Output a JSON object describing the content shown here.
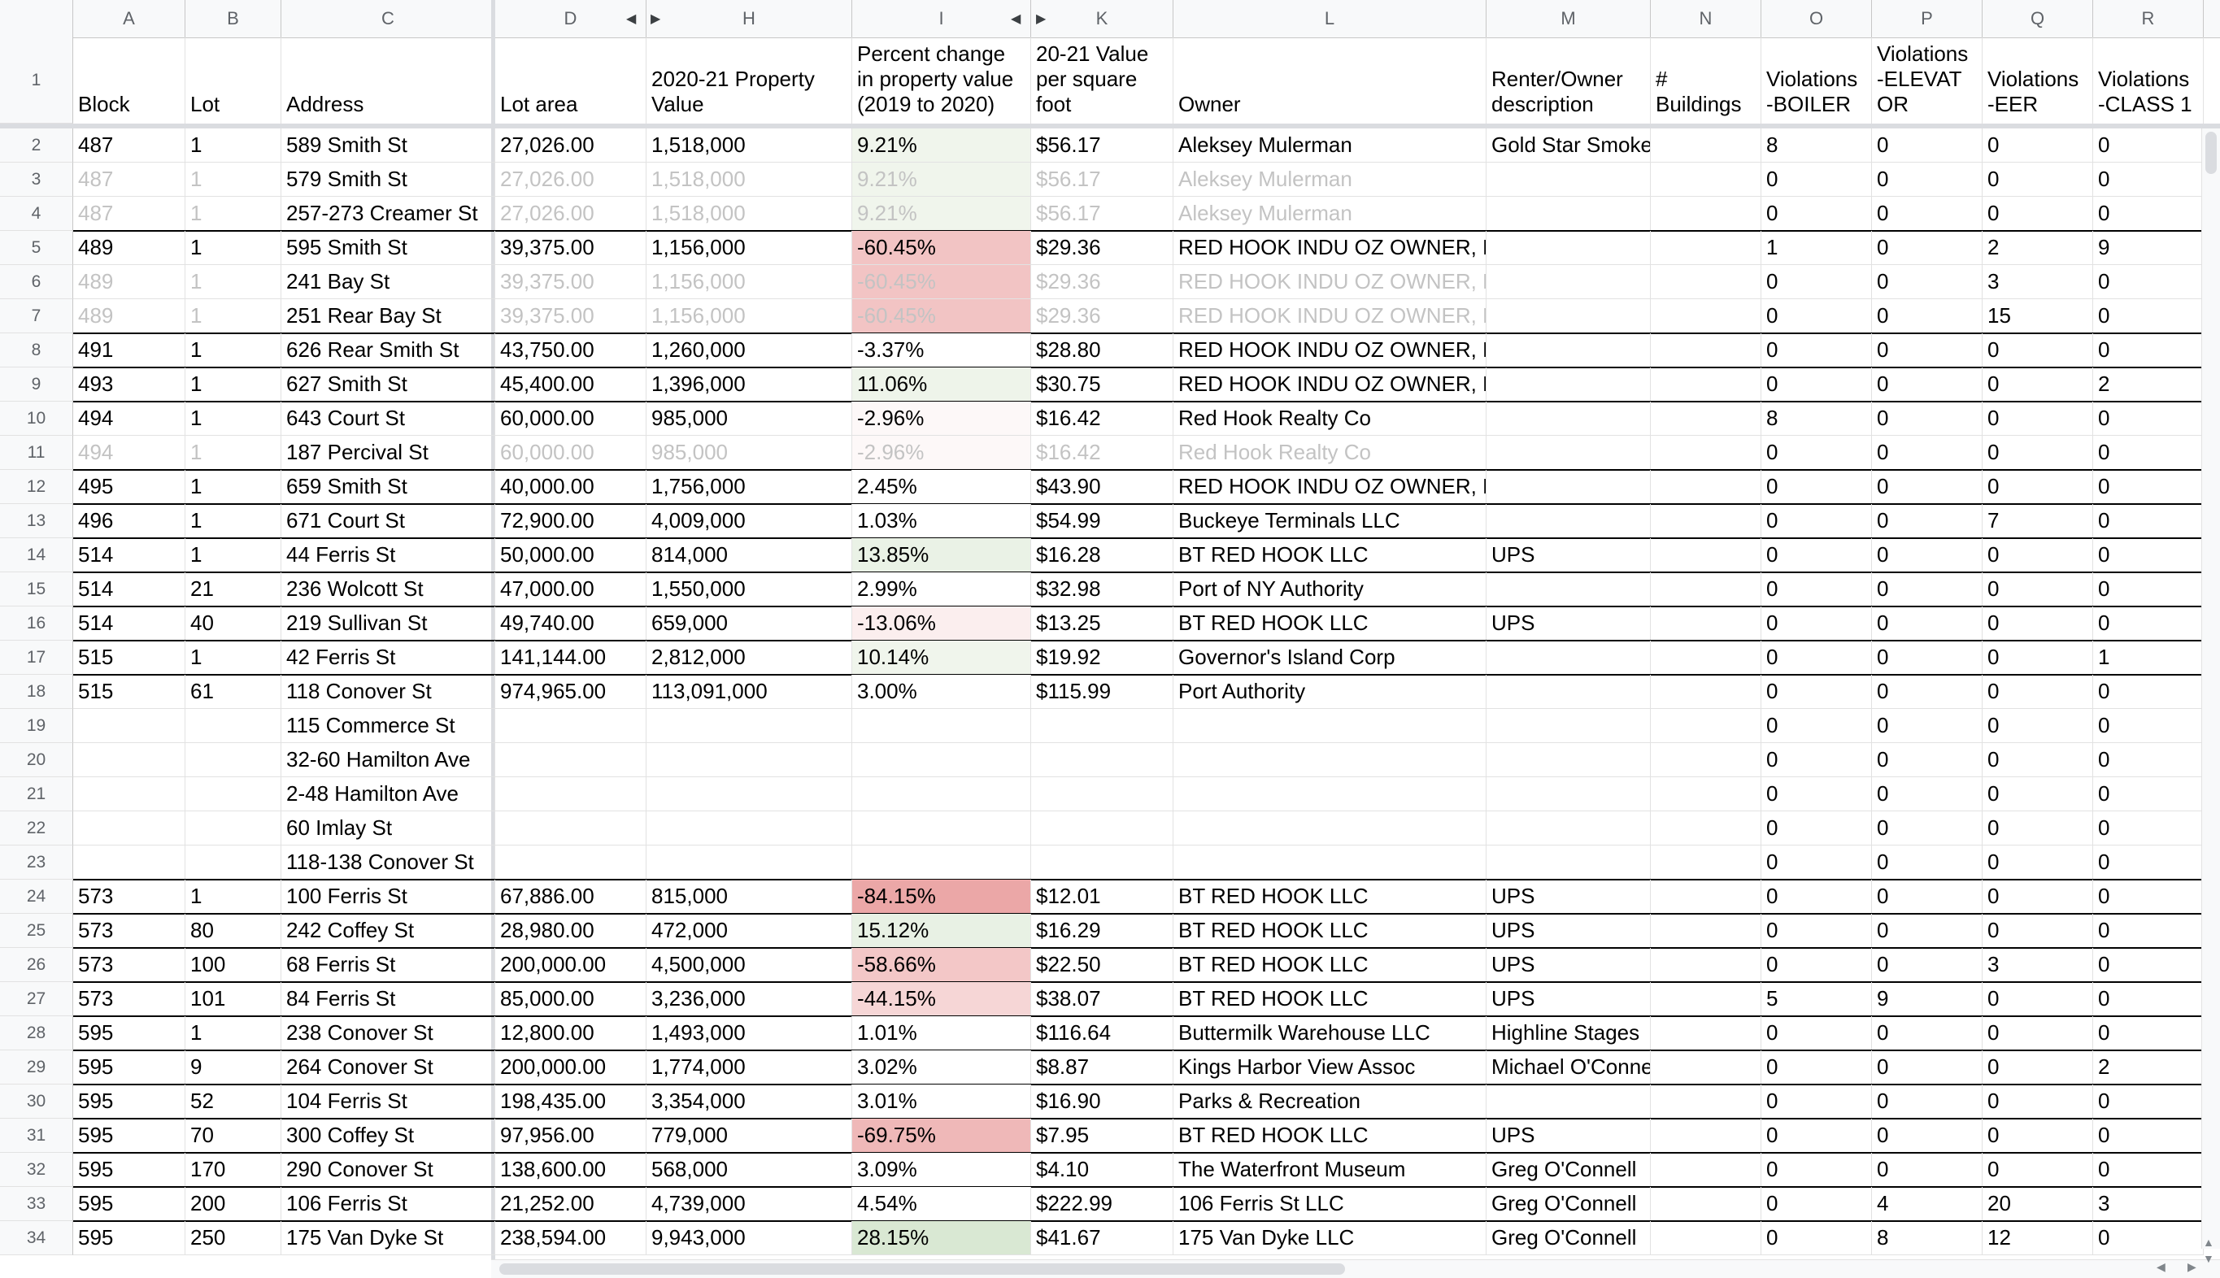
{
  "columns": [
    {
      "letter": "A"
    },
    {
      "letter": "B"
    },
    {
      "letter": "C"
    },
    {
      "letter": "D"
    },
    {
      "letter": "H"
    },
    {
      "letter": "I"
    },
    {
      "letter": "K"
    },
    {
      "letter": "L"
    },
    {
      "letter": "M"
    },
    {
      "letter": "N"
    },
    {
      "letter": "O"
    },
    {
      "letter": "P"
    },
    {
      "letter": "Q"
    },
    {
      "letter": "R"
    }
  ],
  "header_row": [
    "Block",
    "Lot",
    "Address",
    "Lot area",
    "2020-21 Property\nValue",
    "Percent change\nin property value\n(2019 to 2020)",
    "20-21 Value\nper square\nfoot",
    "Owner",
    "Renter/Owner\ndescription",
    "#\nBuildings",
    "Violations\n-BOILER",
    "Violations\n-ELEVAT\nOR",
    "Violations\n-EER",
    "Violations\n-CLASS 1"
  ],
  "rows": [
    {
      "n": "2",
      "cells": [
        "487",
        "1",
        "589 Smith St",
        "27,026.00",
        "1,518,000",
        "9.21%",
        "$56.17",
        "Aleksey Mulerman",
        "Gold Star Smoked Fish",
        "",
        "8",
        "0",
        "0",
        "0"
      ],
      "gray": false,
      "pct_color": "#f0f5ec",
      "line_above": false
    },
    {
      "n": "3",
      "cells": [
        "487",
        "1",
        "579 Smith St",
        "27,026.00",
        "1,518,000",
        "9.21%",
        "$56.17",
        "Aleksey Mulerman",
        "",
        "",
        "0",
        "0",
        "0",
        "0"
      ],
      "gray": true,
      "pct_color": "#f0f5ec",
      "line_above": false
    },
    {
      "n": "4",
      "cells": [
        "487",
        "1",
        "257-273 Creamer St",
        "27,026.00",
        "1,518,000",
        "9.21%",
        "$56.17",
        "Aleksey Mulerman",
        "",
        "",
        "0",
        "0",
        "0",
        "0"
      ],
      "gray": true,
      "pct_color": "#f0f5ec",
      "line_above": false
    },
    {
      "n": "5",
      "cells": [
        "489",
        "1",
        "595 Smith St",
        "39,375.00",
        "1,156,000",
        "-60.45%",
        "$29.36",
        "RED HOOK INDU OZ OWNER, LLC",
        "",
        "",
        "1",
        "0",
        "2",
        "9"
      ],
      "gray": false,
      "pct_color": "#f2c4c4",
      "line_above": true
    },
    {
      "n": "6",
      "cells": [
        "489",
        "1",
        "241 Bay St",
        "39,375.00",
        "1,156,000",
        "-60.45%",
        "$29.36",
        "RED HOOK INDU OZ OWNER, LLC",
        "",
        "",
        "0",
        "0",
        "3",
        "0"
      ],
      "gray": true,
      "pct_color": "#f2c4c4",
      "line_above": false
    },
    {
      "n": "7",
      "cells": [
        "489",
        "1",
        "251 Rear Bay St",
        "39,375.00",
        "1,156,000",
        "-60.45%",
        "$29.36",
        "RED HOOK INDU OZ OWNER, LLC",
        "",
        "",
        "0",
        "0",
        "15",
        "0"
      ],
      "gray": true,
      "pct_color": "#f2c4c4",
      "line_above": false
    },
    {
      "n": "8",
      "cells": [
        "491",
        "1",
        "626 Rear Smith St",
        "43,750.00",
        "1,260,000",
        "-3.37%",
        "$28.80",
        "RED HOOK INDU OZ OWNER, LLC",
        "",
        "",
        "0",
        "0",
        "0",
        "0"
      ],
      "gray": false,
      "pct_color": "#ffffff",
      "line_above": true
    },
    {
      "n": "9",
      "cells": [
        "493",
        "1",
        "627 Smith St",
        "45,400.00",
        "1,396,000",
        "11.06%",
        "$30.75",
        "RED HOOK INDU OZ OWNER, LLC",
        "",
        "",
        "0",
        "0",
        "0",
        "2"
      ],
      "gray": false,
      "pct_color": "#eef4ea",
      "line_above": true
    },
    {
      "n": "10",
      "cells": [
        "494",
        "1",
        "643 Court St",
        "60,000.00",
        "985,000",
        "-2.96%",
        "$16.42",
        "Red Hook Realty Co",
        "",
        "",
        "8",
        "0",
        "0",
        "0"
      ],
      "gray": false,
      "pct_color": "#fdf8f8",
      "line_above": true
    },
    {
      "n": "11",
      "cells": [
        "494",
        "1",
        "187 Percival St",
        "60,000.00",
        "985,000",
        "-2.96%",
        "$16.42",
        "Red Hook Realty Co",
        "",
        "",
        "0",
        "0",
        "0",
        "0"
      ],
      "gray": true,
      "pct_color": "#fdf8f8",
      "line_above": false
    },
    {
      "n": "12",
      "cells": [
        "495",
        "1",
        "659 Smith St",
        "40,000.00",
        "1,756,000",
        "2.45%",
        "$43.90",
        "RED HOOK INDU OZ OWNER, LLC",
        "",
        "",
        "0",
        "0",
        "0",
        "0"
      ],
      "gray": false,
      "pct_color": "#ffffff",
      "line_above": true
    },
    {
      "n": "13",
      "cells": [
        "496",
        "1",
        "671 Court St",
        "72,900.00",
        "4,009,000",
        "1.03%",
        "$54.99",
        "Buckeye Terminals LLC",
        "",
        "",
        "0",
        "0",
        "7",
        "0"
      ],
      "gray": false,
      "pct_color": "#ffffff",
      "line_above": true
    },
    {
      "n": "14",
      "cells": [
        "514",
        "1",
        "44 Ferris St",
        "50,000.00",
        "814,000",
        "13.85%",
        "$16.28",
        "BT RED HOOK LLC",
        "UPS",
        "",
        "0",
        "0",
        "0",
        "0"
      ],
      "gray": false,
      "pct_color": "#eaf2e6",
      "line_above": true
    },
    {
      "n": "15",
      "cells": [
        "514",
        "21",
        "236 Wolcott St",
        "47,000.00",
        "1,550,000",
        "2.99%",
        "$32.98",
        "Port of NY Authority",
        "",
        "",
        "0",
        "0",
        "0",
        "0"
      ],
      "gray": false,
      "pct_color": "#ffffff",
      "line_above": true
    },
    {
      "n": "16",
      "cells": [
        "514",
        "40",
        "219 Sullivan St",
        "49,740.00",
        "659,000",
        "-13.06%",
        "$13.25",
        "BT RED HOOK LLC",
        "UPS",
        "",
        "0",
        "0",
        "0",
        "0"
      ],
      "gray": false,
      "pct_color": "#fbeeee",
      "line_above": true
    },
    {
      "n": "17",
      "cells": [
        "515",
        "1",
        "42 Ferris St",
        "141,144.00",
        "2,812,000",
        "10.14%",
        "$19.92",
        "Governor's Island Corp",
        "",
        "",
        "0",
        "0",
        "0",
        "1"
      ],
      "gray": false,
      "pct_color": "#f0f5ec",
      "line_above": true
    },
    {
      "n": "18",
      "cells": [
        "515",
        "61",
        "118 Conover St",
        "974,965.00",
        "113,091,000",
        "3.00%",
        "$115.99",
        "Port Authority",
        "",
        "",
        "0",
        "0",
        "0",
        "0"
      ],
      "gray": false,
      "pct_color": "#ffffff",
      "line_above": true
    },
    {
      "n": "19",
      "cells": [
        "",
        "",
        "115 Commerce St",
        "",
        "",
        "",
        "",
        "",
        "",
        "",
        "0",
        "0",
        "0",
        "0"
      ],
      "gray": false,
      "pct_color": "#ffffff",
      "line_above": false
    },
    {
      "n": "20",
      "cells": [
        "",
        "",
        "32-60 Hamilton Ave",
        "",
        "",
        "",
        "",
        "",
        "",
        "",
        "0",
        "0",
        "0",
        "0"
      ],
      "gray": false,
      "pct_color": "#ffffff",
      "line_above": false
    },
    {
      "n": "21",
      "cells": [
        "",
        "",
        "2-48 Hamilton Ave",
        "",
        "",
        "",
        "",
        "",
        "",
        "",
        "0",
        "0",
        "0",
        "0"
      ],
      "gray": false,
      "pct_color": "#ffffff",
      "line_above": false
    },
    {
      "n": "22",
      "cells": [
        "",
        "",
        "60 Imlay St",
        "",
        "",
        "",
        "",
        "",
        "",
        "",
        "0",
        "0",
        "0",
        "0"
      ],
      "gray": false,
      "pct_color": "#ffffff",
      "line_above": false
    },
    {
      "n": "23",
      "cells": [
        "",
        "",
        "118-138 Conover St",
        "",
        "",
        "",
        "",
        "",
        "",
        "",
        "0",
        "0",
        "0",
        "0"
      ],
      "gray": false,
      "pct_color": "#ffffff",
      "line_above": false
    },
    {
      "n": "24",
      "cells": [
        "573",
        "1",
        "100 Ferris St",
        "67,886.00",
        "815,000",
        "-84.15%",
        "$12.01",
        "BT RED HOOK LLC",
        "UPS",
        "",
        "0",
        "0",
        "0",
        "0"
      ],
      "gray": false,
      "pct_color": "#eba7a7",
      "line_above": true
    },
    {
      "n": "25",
      "cells": [
        "573",
        "80",
        "242 Coffey St",
        "28,980.00",
        "472,000",
        "15.12%",
        "$16.29",
        "BT RED HOOK LLC",
        "UPS",
        "",
        "0",
        "0",
        "0",
        "0"
      ],
      "gray": false,
      "pct_color": "#e8f1e4",
      "line_above": true
    },
    {
      "n": "26",
      "cells": [
        "573",
        "100",
        "68 Ferris St",
        "200,000.00",
        "4,500,000",
        "-58.66%",
        "$22.50",
        "BT RED HOOK LLC",
        "UPS",
        "",
        "0",
        "0",
        "3",
        "0"
      ],
      "gray": false,
      "pct_color": "#f3c7c7",
      "line_above": true
    },
    {
      "n": "27",
      "cells": [
        "573",
        "101",
        "84 Ferris St",
        "85,000.00",
        "3,236,000",
        "-44.15%",
        "$38.07",
        "BT RED HOOK LLC",
        "UPS",
        "",
        "5",
        "9",
        "0",
        "0"
      ],
      "gray": false,
      "pct_color": "#f6d6d6",
      "line_above": true
    },
    {
      "n": "28",
      "cells": [
        "595",
        "1",
        "238 Conover St",
        "12,800.00",
        "1,493,000",
        "1.01%",
        "$116.64",
        "Buttermilk Warehouse LLC",
        "Highline Stages",
        "",
        "0",
        "0",
        "0",
        "0"
      ],
      "gray": false,
      "pct_color": "#ffffff",
      "line_above": true
    },
    {
      "n": "29",
      "cells": [
        "595",
        "9",
        "264 Conover St",
        "200,000.00",
        "1,774,000",
        "3.02%",
        "$8.87",
        "Kings Harbor View Assoc",
        "Michael O'Connell",
        "",
        "0",
        "0",
        "0",
        "2"
      ],
      "gray": false,
      "pct_color": "#ffffff",
      "line_above": true
    },
    {
      "n": "30",
      "cells": [
        "595",
        "52",
        "104 Ferris St",
        "198,435.00",
        "3,354,000",
        "3.01%",
        "$16.90",
        "Parks & Recreation",
        "",
        "",
        "0",
        "0",
        "0",
        "0"
      ],
      "gray": false,
      "pct_color": "#ffffff",
      "line_above": true
    },
    {
      "n": "31",
      "cells": [
        "595",
        "70",
        "300 Coffey St",
        "97,956.00",
        "779,000",
        "-69.75%",
        "$7.95",
        "BT RED HOOK LLC",
        "UPS",
        "",
        "0",
        "0",
        "0",
        "0"
      ],
      "gray": false,
      "pct_color": "#efb8b8",
      "line_above": true
    },
    {
      "n": "32",
      "cells": [
        "595",
        "170",
        "290 Conover St",
        "138,600.00",
        "568,000",
        "3.09%",
        "$4.10",
        "The Waterfront Museum",
        "Greg O'Connell",
        "",
        "0",
        "0",
        "0",
        "0"
      ],
      "gray": false,
      "pct_color": "#ffffff",
      "line_above": true
    },
    {
      "n": "33",
      "cells": [
        "595",
        "200",
        "106 Ferris St",
        "21,252.00",
        "4,739,000",
        "4.54%",
        "$222.99",
        "106 Ferris St LLC",
        "Greg O'Connell",
        "",
        "0",
        "4",
        "20",
        "3"
      ],
      "gray": false,
      "pct_color": "#ffffff",
      "line_above": true
    },
    {
      "n": "34",
      "cells": [
        "595",
        "250",
        "175 Van Dyke St",
        "238,594.00",
        "9,943,000",
        "28.15%",
        "$41.67",
        "175 Van Dyke LLC",
        "Greg O'Connell",
        "",
        "0",
        "8",
        "12",
        "0"
      ],
      "gray": false,
      "pct_color": "#d9e8d3",
      "line_above": true
    }
  ]
}
